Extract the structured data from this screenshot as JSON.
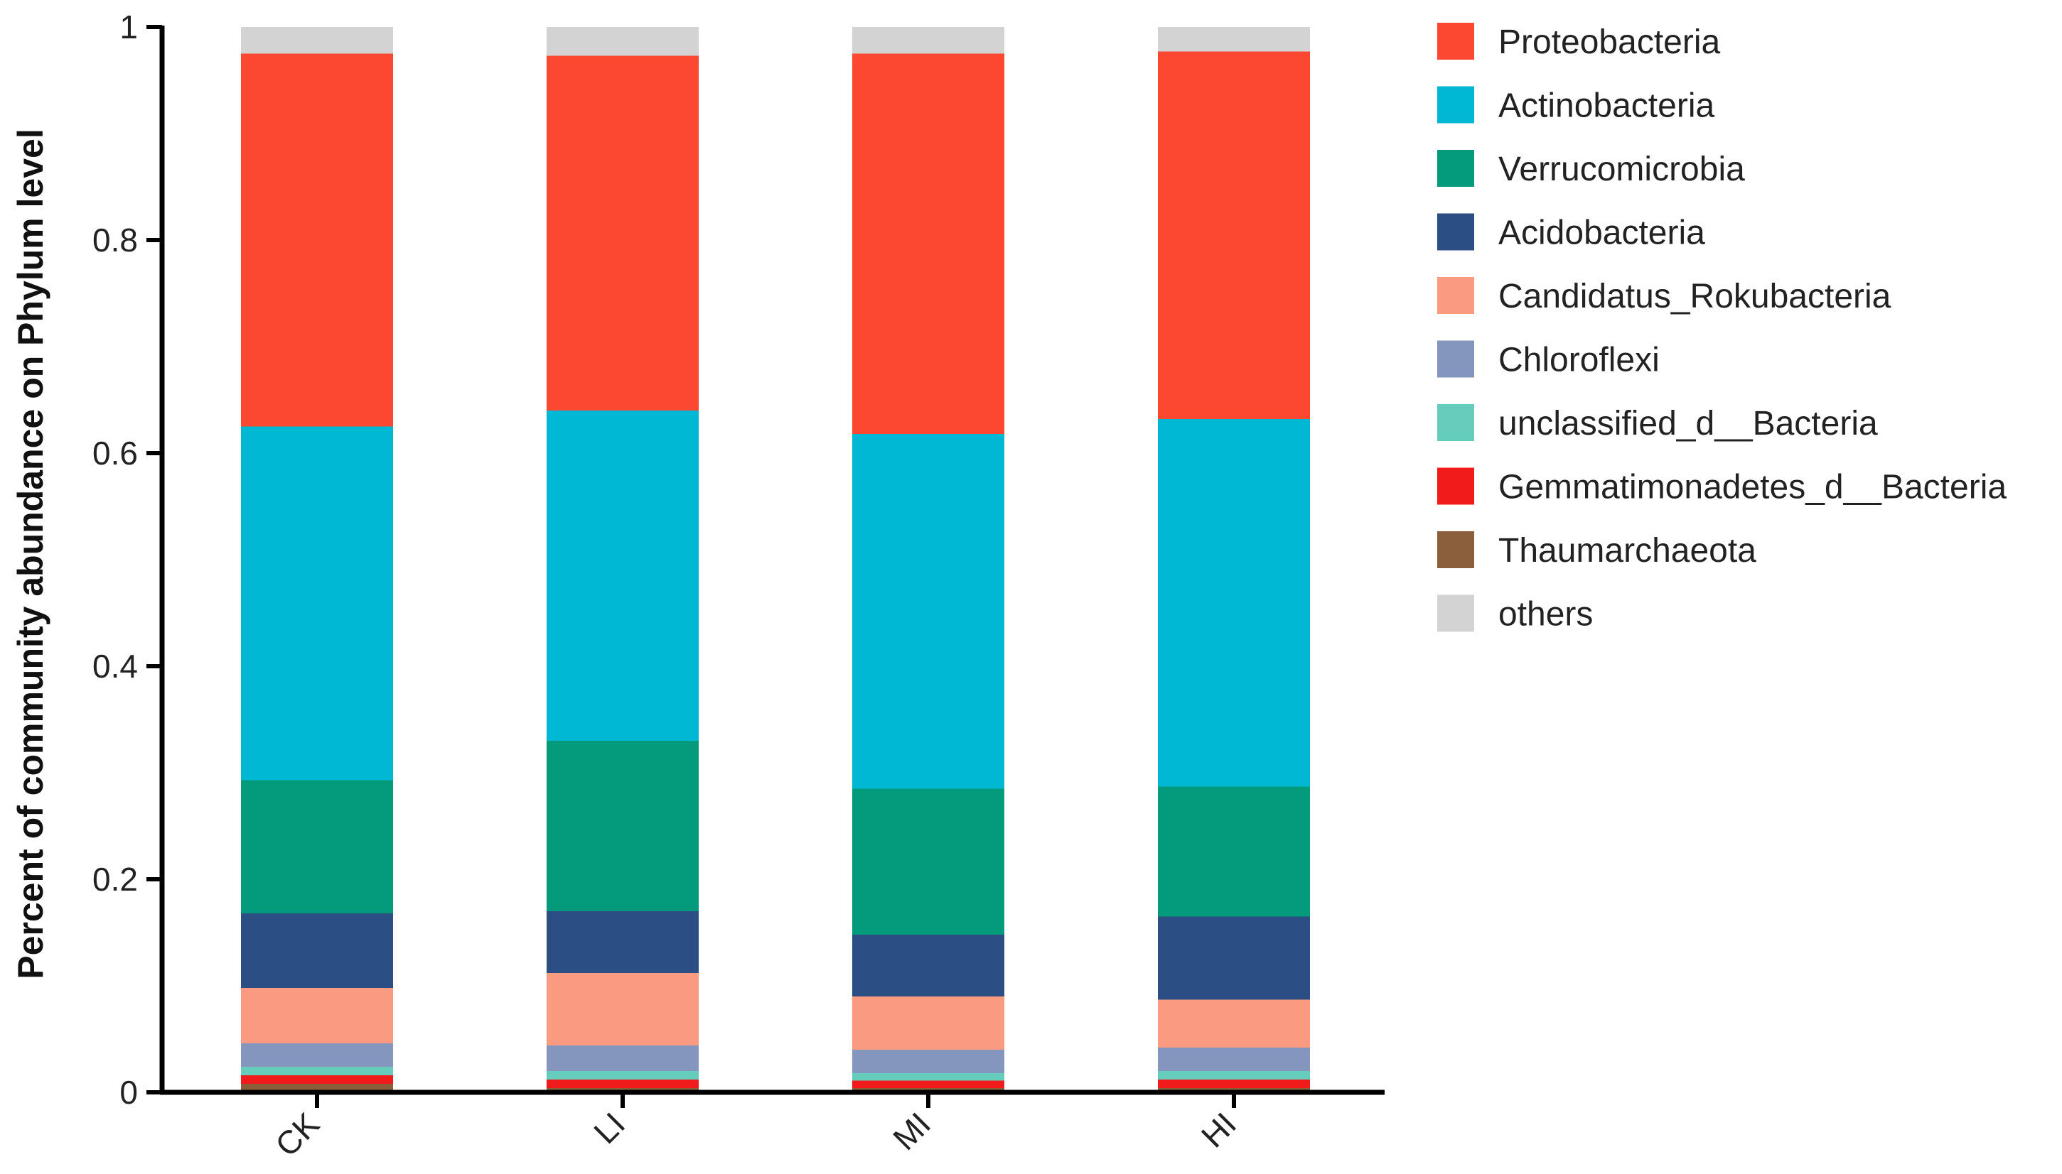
{
  "chart_data": {
    "type": "bar",
    "stacked": true,
    "title": "",
    "xlabel": "",
    "ylabel": "Percent of community abundance on Phylum level",
    "ylim": [
      0,
      1
    ],
    "yticks": [
      "0",
      "0.2",
      "0.4",
      "0.6",
      "0.8",
      "1"
    ],
    "categories": [
      "CK",
      "LI",
      "MI",
      "HI"
    ],
    "legend_position": "right",
    "series": [
      {
        "name": "Thaumarchaeota",
        "color": "#8B5E3C",
        "values": [
          0.008,
          0.004,
          0.004,
          0.004
        ]
      },
      {
        "name": "Gemmatimonadetes_d__Bacteria",
        "color": "#F21B1B",
        "values": [
          0.008,
          0.008,
          0.007,
          0.008
        ]
      },
      {
        "name": "unclassified_d__Bacteria",
        "color": "#66CDBD",
        "values": [
          0.008,
          0.008,
          0.007,
          0.008
        ]
      },
      {
        "name": "Chloroflexi",
        "color": "#8496BE",
        "values": [
          0.022,
          0.024,
          0.022,
          0.022
        ]
      },
      {
        "name": "Candidatus_Rokubacteria",
        "color": "#FA9A80",
        "values": [
          0.052,
          0.068,
          0.05,
          0.045
        ]
      },
      {
        "name": "Acidobacteria",
        "color": "#2B4F85",
        "values": [
          0.07,
          0.058,
          0.058,
          0.078
        ]
      },
      {
        "name": "Verrucomicrobia",
        "color": "#049A7C",
        "values": [
          0.125,
          0.16,
          0.137,
          0.122
        ]
      },
      {
        "name": "Actinobacteria",
        "color": "#00B8D4",
        "values": [
          0.332,
          0.31,
          0.333,
          0.345
        ]
      },
      {
        "name": "Proteobacteria",
        "color": "#FC4830",
        "values": [
          0.35,
          0.333,
          0.357,
          0.345
        ]
      },
      {
        "name": "others",
        "color": "#D3D3D3",
        "values": [
          0.025,
          0.027,
          0.025,
          0.023
        ]
      }
    ],
    "legend_order": [
      "Proteobacteria",
      "Actinobacteria",
      "Verrucomicrobia",
      "Acidobacteria",
      "Candidatus_Rokubacteria",
      "Chloroflexi",
      "unclassified_d__Bacteria",
      "Gemmatimonadetes_d__Bacteria",
      "Thaumarchaeota",
      "others"
    ]
  }
}
